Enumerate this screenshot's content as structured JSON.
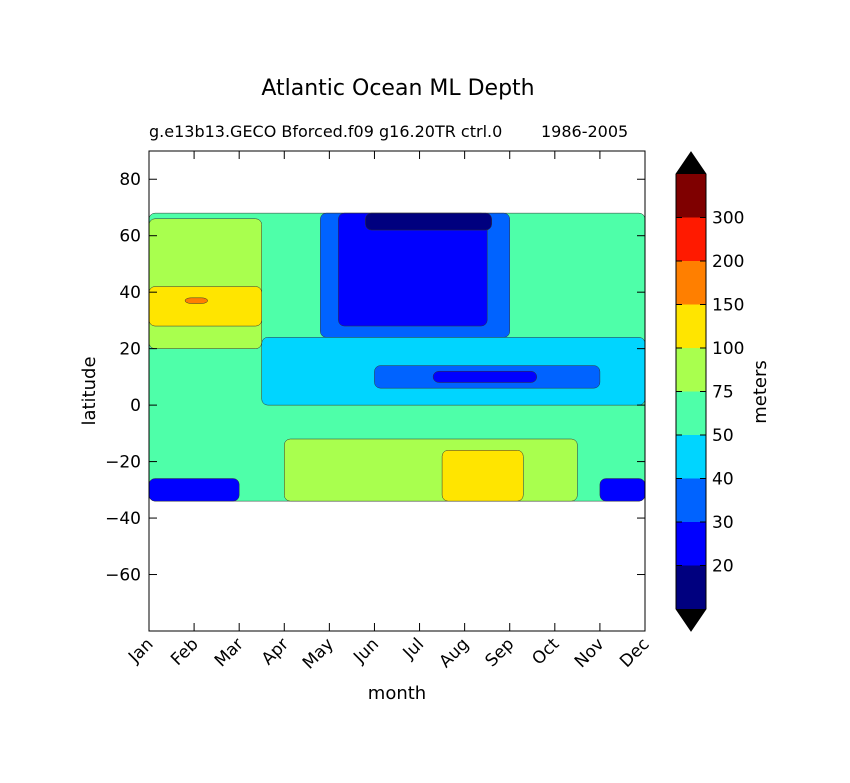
{
  "chart_data": {
    "type": "contour",
    "title": "Atlantic Ocean ML Depth",
    "subtitle_left": "g.e13b13.GECO Bforced.f09 g16.20TR ctrl.0",
    "subtitle_right": "1986-2005",
    "xlabel": "month",
    "ylabel": "latitude",
    "x_ticks": [
      "Jan",
      "Feb",
      "Mar",
      "Apr",
      "May",
      "Jun",
      "Jul",
      "Aug",
      "Sep",
      "Oct",
      "Nov",
      "Dec"
    ],
    "y_ticks": [
      80,
      60,
      40,
      20,
      0,
      -20,
      -40,
      -60
    ],
    "y_tick_labels": [
      "80",
      "60",
      "40",
      "20",
      "0",
      "−20",
      "−40",
      "−60"
    ],
    "ylim": [
      -80,
      90
    ],
    "data_lat_range": [
      -34,
      68
    ],
    "colorbar": {
      "label": "meters",
      "levels": [
        10,
        20,
        30,
        40,
        50,
        75,
        100,
        150,
        200,
        300,
        400
      ],
      "tick_labels": [
        "20",
        "30",
        "40",
        "50",
        "75",
        "100",
        "150",
        "200",
        "300"
      ],
      "colors": [
        "#00007f",
        "#0000ff",
        "#0063ff",
        "#00d5ff",
        "#4effa9",
        "#a9ff4e",
        "#ffe500",
        "#ff7f00",
        "#ff1a00",
        "#7f0000"
      ],
      "extend_min_color": "#000000",
      "extend_max_color": "#000000"
    },
    "field_description": "monthly climatology of mixed layer depth by latitude, filled contours",
    "regions": [
      {
        "level": 50,
        "lat_range": [
          -34,
          68
        ],
        "months": [
          0,
          11
        ]
      },
      {
        "level": 75,
        "lat_range": [
          20,
          66
        ],
        "months": [
          0,
          2.5
        ]
      },
      {
        "level": 100,
        "lat_range": [
          28,
          42
        ],
        "months": [
          0,
          2.5
        ]
      },
      {
        "level": 150,
        "lat_range": [
          36,
          38
        ],
        "months": [
          0.8,
          1.3
        ]
      },
      {
        "level": 30,
        "lat_range": [
          24,
          68
        ],
        "months": [
          3.8,
          8
        ]
      },
      {
        "level": 20,
        "lat_range": [
          28,
          68
        ],
        "months": [
          4.2,
          7.5
        ]
      },
      {
        "level": 10,
        "lat_range": [
          62,
          68
        ],
        "months": [
          4.8,
          7.6
        ]
      },
      {
        "level": 40,
        "lat_range": [
          0,
          24
        ],
        "months": [
          2.5,
          11
        ]
      },
      {
        "level": 30,
        "lat_range": [
          6,
          14
        ],
        "months": [
          5,
          10
        ]
      },
      {
        "level": 20,
        "lat_range": [
          8,
          12
        ],
        "months": [
          6.3,
          8.6
        ]
      },
      {
        "level": 75,
        "lat_range": [
          -34,
          -12
        ],
        "months": [
          3,
          9.5
        ]
      },
      {
        "level": 100,
        "lat_range": [
          -34,
          -16
        ],
        "months": [
          6.5,
          8.3
        ]
      },
      {
        "level": 20,
        "lat_range": [
          -34,
          -26
        ],
        "months": [
          0,
          2
        ],
        "note": "southwest"
      },
      {
        "level": 20,
        "lat_range": [
          -34,
          -26
        ],
        "months": [
          10,
          11
        ],
        "note": "southeast"
      }
    ]
  }
}
